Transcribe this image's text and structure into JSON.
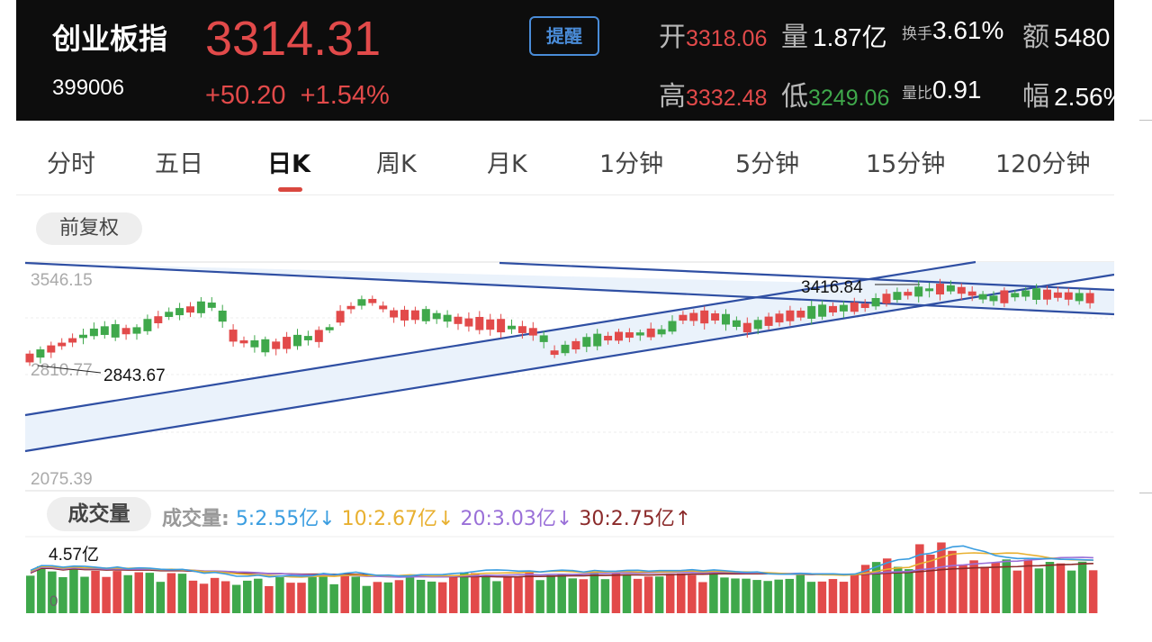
{
  "header": {
    "name": "创业板指",
    "code": "399006",
    "price": "3314.31",
    "change": "+50.20",
    "change_pct": "+1.54%",
    "alert_label": "提醒",
    "open_label": "开",
    "open_value": "3318.06",
    "volume_label": "量",
    "volume_value": "1.87亿",
    "turnover_label": "换手",
    "turnover_value": "3.61%",
    "amount_label": "额",
    "amount_value": "5480",
    "high_label": "高",
    "high_value": "3332.48",
    "low_label": "低",
    "low_value": "3249.06",
    "vol_ratio_label": "量比",
    "vol_ratio_value": "0.91",
    "amplitude_label": "幅",
    "amplitude_value": "2.56%"
  },
  "tabs": [
    "分时",
    "五日",
    "日K",
    "周K",
    "月K",
    "1分钟",
    "5分钟",
    "15分钟",
    "120分钟"
  ],
  "active_tab": "日K",
  "adjust_label": "前复权",
  "chart": {
    "y_labels": [
      "3546.15",
      "2810.77",
      "2075.39"
    ],
    "high_mark": "3416.84",
    "low_mark": "2843.67"
  },
  "volume": {
    "button_label": "成交量",
    "title": "成交量:",
    "ma5": "5:2.55亿",
    "ma10": "10:2.67亿",
    "ma20": "20:3.03亿",
    "ma30": "30:2.75亿",
    "arrow5": "↓",
    "arrow10": "↓",
    "arrow20": "↓",
    "arrow30": "↑",
    "max_label": "4.57亿",
    "zero_label": "0"
  },
  "colors": {
    "up": "#e24a4a",
    "down": "#3fa84b",
    "trendline": "#2f4fa3",
    "channel_fill": "#eaf2fb",
    "ma5": "#3a9de0",
    "ma10": "#e8b030",
    "ma20": "#9a70d8",
    "ma30": "#8b2a2a",
    "accent": "#d9473f"
  }
}
